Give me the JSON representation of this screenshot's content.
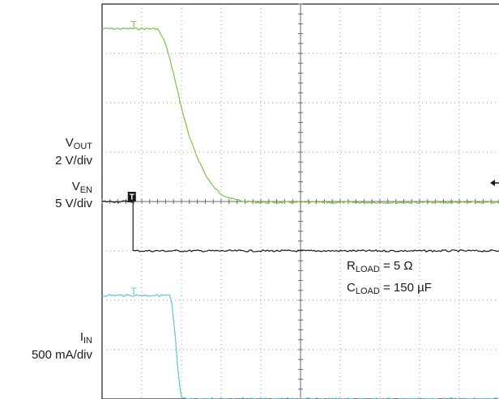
{
  "chart_data": {
    "type": "line",
    "title": "",
    "grid": true,
    "divisions": {
      "x": 10,
      "y": 8
    },
    "x_range_div": [
      0,
      10
    ],
    "y_range_div": [
      0,
      8
    ],
    "channels": [
      {
        "name": "VOUT",
        "label_main": "V",
        "label_sub": "OUT",
        "scale": "2 V/div",
        "color": "#7cc24a",
        "x_div": [
          0,
          0.7,
          1.4,
          1.6,
          1.8,
          2.0,
          2.2,
          2.4,
          2.6,
          2.8,
          3.0,
          3.3,
          3.6,
          4.0,
          10
        ],
        "y_div": [
          7.5,
          7.5,
          7.5,
          7.2,
          6.6,
          5.9,
          5.3,
          4.9,
          4.55,
          4.3,
          4.15,
          4.05,
          4.0,
          3.98,
          3.98
        ]
      },
      {
        "name": "VEN",
        "label_main": "V",
        "label_sub": "EN",
        "scale": "5 V/div",
        "color": "#1a1a1a",
        "x_div": [
          0,
          0.78,
          0.78,
          10
        ],
        "y_div": [
          4.0,
          4.0,
          3.0,
          3.0
        ]
      },
      {
        "name": "IIN",
        "label_main": "I",
        "label_sub": "IN",
        "scale": "500 mA/div",
        "color": "#5ec3d6",
        "x_div": [
          0,
          1.7,
          1.75,
          1.8,
          1.85,
          1.9,
          1.95,
          2.0,
          2.1,
          10
        ],
        "y_div": [
          2.1,
          2.1,
          1.95,
          1.6,
          1.2,
          0.7,
          0.3,
          0.02,
          0.0,
          0.0
        ]
      }
    ],
    "trigger_markers": [
      {
        "channel": "VOUT",
        "x_div": 0.8,
        "symbol": "T"
      },
      {
        "channel": "VEN",
        "x_div": 0.75,
        "symbol": "T"
      },
      {
        "channel": "IIN",
        "x_div": 0.8,
        "symbol": "T"
      }
    ],
    "annotations": {
      "r_load": {
        "main": "R",
        "sub": "LOAD",
        "value": " = 5 Ω"
      },
      "c_load": {
        "main": "C",
        "sub": "LOAD",
        "value": " = 150 µF"
      }
    }
  }
}
